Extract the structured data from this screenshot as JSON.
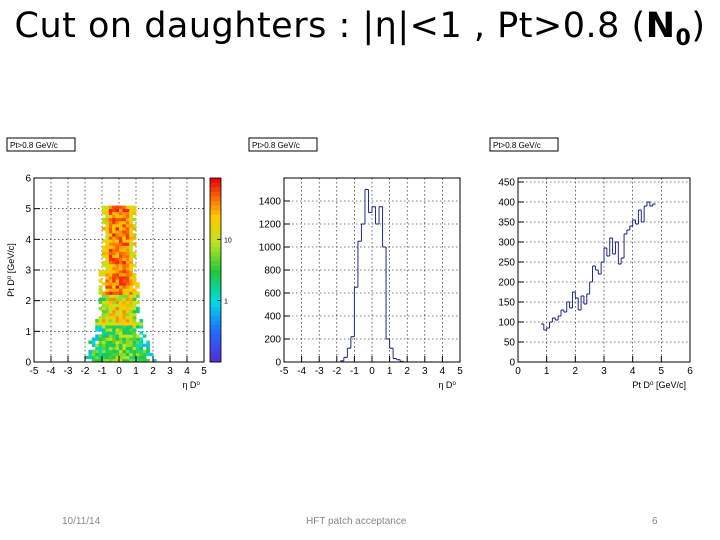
{
  "slide": {
    "title_prefix": "Cut on daughters : |",
    "title_eta": "η",
    "title_mid": "|<1 , Pt>0.8 (",
    "title_bold": "N",
    "title_sub": "0",
    "title_suffix": ")"
  },
  "footer": {
    "date": "10/11/14",
    "center": "HFT patch acceptance",
    "page": "6"
  },
  "chart_data": [
    {
      "type": "heatmap",
      "title": "Pt>0.8 GeV/c",
      "xlabel": "η D⁰",
      "ylabel": "Pt D⁰ [GeV/c]",
      "xlim": [
        -5,
        5
      ],
      "ylim": [
        0,
        6
      ],
      "x_ticks": [
        "-5",
        "-4",
        "-3",
        "-2",
        "-1",
        "0",
        "1",
        "2",
        "3",
        "4",
        "5"
      ],
      "y_ticks": [
        "0",
        "1",
        "2",
        "3",
        "4",
        "5",
        "6"
      ],
      "z_log": true,
      "z_ticks": [
        "1",
        "10"
      ],
      "z_range": [
        0.1,
        100
      ],
      "grid": true,
      "eta_halfwidth_by_pt": [
        [
          0,
          2.0
        ],
        [
          0.5,
          1.7
        ],
        [
          1.0,
          1.3
        ],
        [
          1.5,
          1.1
        ],
        [
          2.0,
          1.0
        ],
        [
          3.0,
          0.95
        ],
        [
          5.0,
          0.85
        ]
      ],
      "max_pt": 5.0
    },
    {
      "type": "bar",
      "title": "Pt>0.8 GeV/c",
      "xlabel": "η D⁰",
      "ylabel": "",
      "xlim": [
        -5,
        5
      ],
      "ylim": [
        0,
        1600
      ],
      "x_ticks": [
        "-5",
        "-4",
        "-3",
        "-2",
        "-1",
        "0",
        "1",
        "2",
        "3",
        "4",
        "5"
      ],
      "y_ticks": [
        "0",
        "200",
        "400",
        "600",
        "800",
        "1000",
        "1200",
        "1400"
      ],
      "grid": true,
      "bin_edges": [
        -1.8,
        -1.6,
        -1.4,
        -1.2,
        -1.0,
        -0.8,
        -0.6,
        -0.4,
        -0.2,
        0.0,
        0.2,
        0.4,
        0.6,
        0.8,
        1.0,
        1.2,
        1.4,
        1.6,
        1.8
      ],
      "values": [
        10,
        40,
        120,
        220,
        650,
        1050,
        1200,
        1500,
        1300,
        1350,
        1200,
        1350,
        1000,
        200,
        120,
        30,
        20,
        5
      ]
    },
    {
      "type": "bar",
      "title": "Pt>0.8 GeV/c",
      "xlabel": "Pt D⁰ [GeV/c]",
      "ylabel": "",
      "xlim": [
        0,
        6
      ],
      "ylim": [
        0,
        460
      ],
      "x_ticks": [
        "0",
        "1",
        "2",
        "3",
        "4",
        "5",
        "6"
      ],
      "y_ticks": [
        "0",
        "50",
        "100",
        "150",
        "200",
        "250",
        "300",
        "350",
        "400",
        "450"
      ],
      "grid": true,
      "bin_width": 0.1,
      "x_start": 0.8,
      "values": [
        95,
        80,
        85,
        100,
        110,
        105,
        115,
        130,
        125,
        150,
        135,
        175,
        160,
        130,
        165,
        145,
        170,
        200,
        240,
        230,
        220,
        250,
        285,
        265,
        310,
        270,
        300,
        245,
        260,
        320,
        330,
        340,
        355,
        345,
        380,
        350,
        390,
        400,
        390,
        395
      ]
    }
  ]
}
